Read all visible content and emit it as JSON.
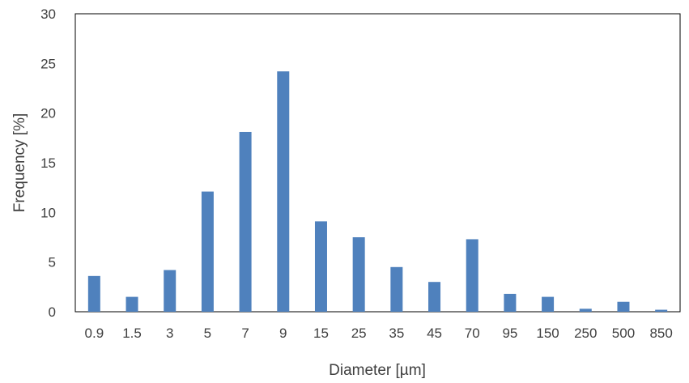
{
  "chart_data": {
    "type": "bar",
    "title": "",
    "xlabel": "Diameter [µm]",
    "ylabel": "Frequency [%]",
    "categories": [
      "0.9",
      "1.5",
      "3",
      "5",
      "7",
      "9",
      "15",
      "25",
      "35",
      "45",
      "70",
      "95",
      "150",
      "250",
      "500",
      "850"
    ],
    "values": [
      3.6,
      1.5,
      4.2,
      12.1,
      18.1,
      24.2,
      9.1,
      7.5,
      4.5,
      3.0,
      7.3,
      1.8,
      1.5,
      0.3,
      1.0,
      0.2
    ],
    "ylim": [
      0,
      30
    ],
    "yticks": [
      "0",
      "5",
      "10",
      "15",
      "20",
      "25",
      "30"
    ],
    "grid": false,
    "legend": "none",
    "bar_color": "#4F81BD",
    "axis_color": "#000000",
    "text_color": "#404040"
  }
}
